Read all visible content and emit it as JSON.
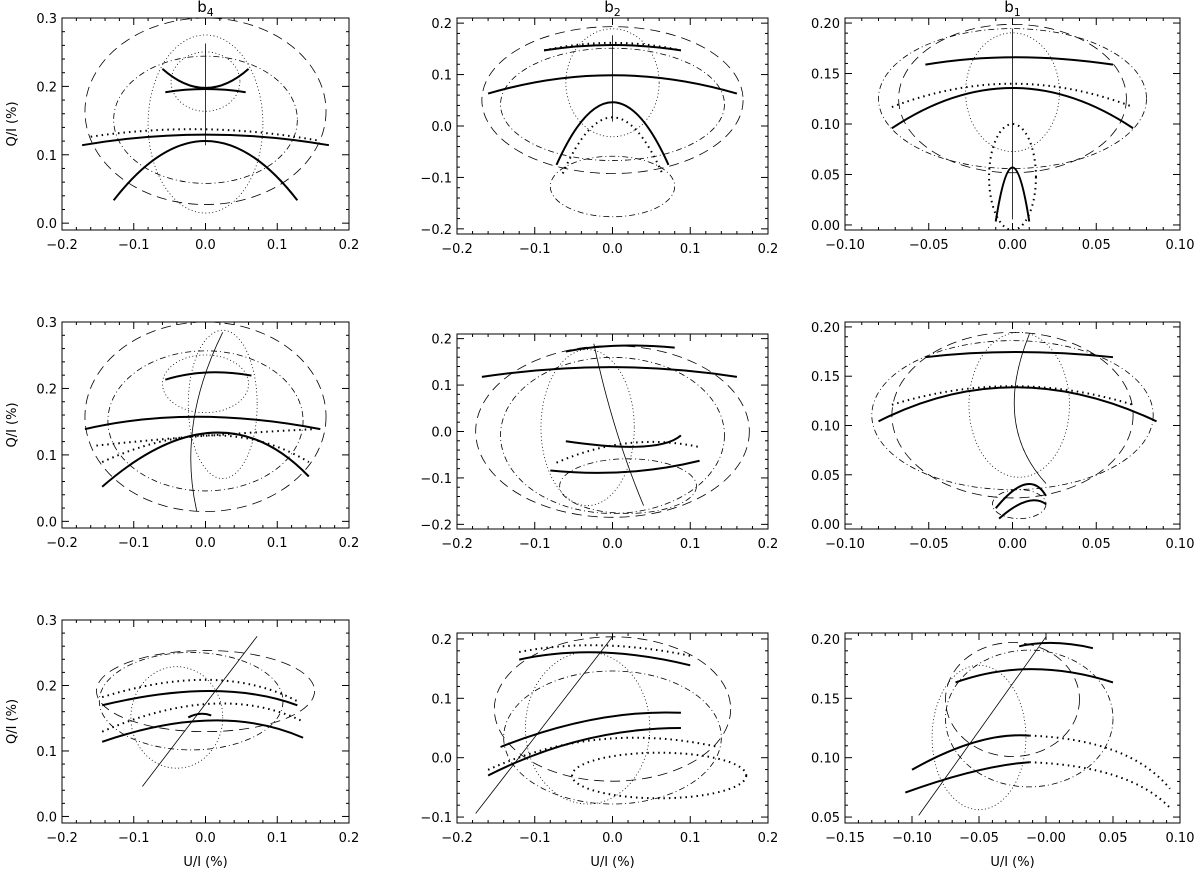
{
  "chart_data": [
    {
      "panel": "r1c1",
      "type": "line",
      "title": "b4",
      "title_main": "b",
      "title_sub": "4",
      "xlabel": "",
      "ylabel": "Q/I (%)",
      "xlim": [
        -0.2,
        0.2
      ],
      "ylim": [
        -0.01,
        0.3
      ],
      "xticks": [
        -0.2,
        -0.1,
        0.0,
        0.1,
        0.2
      ],
      "xtick_labels": [
        "−0.2",
        "−0.1",
        "0.0",
        "0.1",
        "0.2"
      ],
      "yticks": [
        0.0,
        0.1,
        0.2,
        0.3
      ],
      "ytick_labels": [
        "0.0",
        "0.1",
        "0.2",
        "0.3"
      ]
    },
    {
      "panel": "r1c2",
      "type": "line",
      "title": "b2",
      "title_main": "b",
      "title_sub": "2",
      "xlabel": "",
      "ylabel": "",
      "xlim": [
        -0.2,
        0.2
      ],
      "ylim": [
        -0.21,
        0.21
      ],
      "xticks": [
        -0.2,
        -0.1,
        0.0,
        0.1,
        0.2
      ],
      "xtick_labels": [
        "−0.2",
        "−0.1",
        "0.0",
        "0.1",
        "0.2"
      ],
      "yticks": [
        -0.2,
        -0.1,
        0.0,
        0.1,
        0.2
      ],
      "ytick_labels": [
        "−0.2",
        "−0.1",
        "0.0",
        "0.1",
        "0.2"
      ]
    },
    {
      "panel": "r1c3",
      "type": "line",
      "title": "b1",
      "title_main": "b",
      "title_sub": "1",
      "xlabel": "",
      "ylabel": "",
      "xlim": [
        -0.1,
        0.1
      ],
      "ylim": [
        -0.005,
        0.205
      ],
      "xticks": [
        -0.1,
        -0.05,
        0.0,
        0.05,
        0.1
      ],
      "xtick_labels": [
        "−0.10",
        "−0.05",
        "0.00",
        "0.05",
        "0.10"
      ],
      "yticks": [
        0.0,
        0.05,
        0.1,
        0.15,
        0.2
      ],
      "ytick_labels": [
        "0.00",
        "0.05",
        "0.10",
        "0.15",
        "0.20"
      ]
    },
    {
      "panel": "r2c1",
      "type": "line",
      "title": "",
      "title_main": "",
      "title_sub": "",
      "xlabel": "",
      "ylabel": "Q/I (%)",
      "xlim": [
        -0.2,
        0.2
      ],
      "ylim": [
        -0.01,
        0.3
      ],
      "xticks": [
        -0.2,
        -0.1,
        0.0,
        0.1,
        0.2
      ],
      "xtick_labels": [
        "−0.2",
        "−0.1",
        "0.0",
        "0.1",
        "0.2"
      ],
      "yticks": [
        0.0,
        0.1,
        0.2,
        0.3
      ],
      "ytick_labels": [
        "0.0",
        "0.1",
        "0.2",
        "0.3"
      ]
    },
    {
      "panel": "r2c2",
      "type": "line",
      "title": "",
      "title_main": "",
      "title_sub": "",
      "xlabel": "",
      "ylabel": "",
      "xlim": [
        -0.2,
        0.2
      ],
      "ylim": [
        -0.21,
        0.21
      ],
      "xticks": [
        -0.2,
        -0.1,
        0.0,
        0.1,
        0.2
      ],
      "xtick_labels": [
        "−0.2",
        "−0.1",
        "0.0",
        "0.1",
        "0.2"
      ],
      "yticks": [
        -0.2,
        -0.1,
        0.0,
        0.1,
        0.2
      ],
      "ytick_labels": [
        "−0.2",
        "−0.1",
        "0.0",
        "0.1",
        "0.2"
      ]
    },
    {
      "panel": "r2c3",
      "type": "line",
      "title": "",
      "title_main": "",
      "title_sub": "",
      "xlabel": "",
      "ylabel": "",
      "xlim": [
        -0.1,
        0.1
      ],
      "ylim": [
        -0.005,
        0.205
      ],
      "xticks": [
        -0.1,
        -0.05,
        0.0,
        0.05,
        0.1
      ],
      "xtick_labels": [
        "−0.10",
        "−0.05",
        "0.00",
        "0.05",
        "0.10"
      ],
      "yticks": [
        0.0,
        0.05,
        0.1,
        0.15,
        0.2
      ],
      "ytick_labels": [
        "0.00",
        "0.05",
        "0.10",
        "0.15",
        "0.20"
      ]
    },
    {
      "panel": "r3c1",
      "type": "line",
      "title": "",
      "title_main": "",
      "title_sub": "",
      "xlabel": "U/I (%)",
      "ylabel": "Q/I (%)",
      "xlim": [
        -0.2,
        0.2
      ],
      "ylim": [
        -0.01,
        0.3
      ],
      "xticks": [
        -0.2,
        -0.1,
        0.0,
        0.1,
        0.2
      ],
      "xtick_labels": [
        "−0.2",
        "−0.1",
        "0.0",
        "0.1",
        "0.2"
      ],
      "yticks": [
        0.0,
        0.1,
        0.2,
        0.3
      ],
      "ytick_labels": [
        "0.0",
        "0.1",
        "0.2",
        "0.3"
      ]
    },
    {
      "panel": "r3c2",
      "type": "line",
      "title": "",
      "title_main": "",
      "title_sub": "",
      "xlabel": "U/I (%)",
      "ylabel": "",
      "xlim": [
        -0.2,
        0.2
      ],
      "ylim": [
        -0.11,
        0.21
      ],
      "xticks": [
        -0.2,
        -0.1,
        0.0,
        0.1,
        0.2
      ],
      "xtick_labels": [
        "−0.2",
        "−0.1",
        "0.0",
        "0.1",
        "0.2"
      ],
      "yticks": [
        -0.1,
        0.0,
        0.1,
        0.2
      ],
      "ytick_labels": [
        "−0.1",
        "0.0",
        "0.1",
        "0.2"
      ]
    },
    {
      "panel": "r3c3",
      "type": "line",
      "title": "",
      "title_main": "",
      "title_sub": "",
      "xlabel": "U/I (%)",
      "ylabel": "",
      "xlim": [
        -0.15,
        0.1
      ],
      "ylim": [
        0.045,
        0.205
      ],
      "xticks": [
        -0.15,
        -0.1,
        -0.05,
        0.0,
        0.05,
        0.1
      ],
      "xtick_labels": [
        "−0.15",
        "−0.10",
        "−0.05",
        "−0.00",
        "0.05",
        "0.10"
      ],
      "yticks": [
        0.05,
        0.1,
        0.15,
        0.2
      ],
      "ytick_labels": [
        "0.05",
        "0.10",
        "0.15",
        "0.20"
      ]
    }
  ]
}
